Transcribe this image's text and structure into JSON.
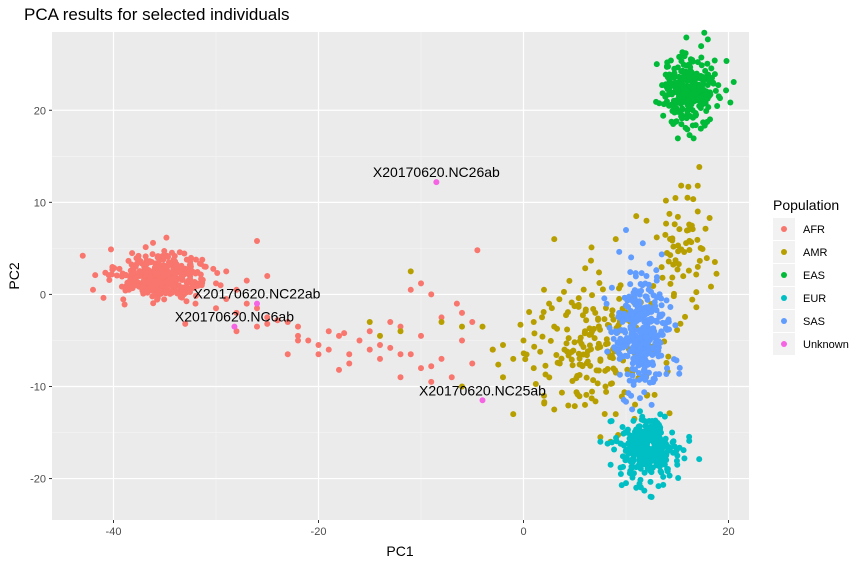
{
  "chart_data": {
    "type": "scatter",
    "title": "PCA results for selected individuals",
    "xlabel": "PC1",
    "ylabel": "PC2",
    "xlim": [
      -46,
      22
    ],
    "ylim": [
      -24.5,
      28.5
    ],
    "xticks": [
      -40,
      -20,
      0,
      20
    ],
    "yticks": [
      -20,
      -10,
      0,
      10,
      20
    ],
    "xtick_labels": [
      "-40",
      "-20",
      "0",
      "20"
    ],
    "ytick_labels": [
      "-20",
      "-10",
      "0",
      "10",
      "20"
    ],
    "grid": true,
    "legend": {
      "title": "Population",
      "position": "right",
      "entries": [
        {
          "label": "AFR",
          "color": "#F8766D"
        },
        {
          "label": "AMR",
          "color": "#B79F00"
        },
        {
          "label": "EAS",
          "color": "#00BA38"
        },
        {
          "label": "EUR",
          "color": "#00BFC4"
        },
        {
          "label": "SAS",
          "color": "#619CFF"
        },
        {
          "label": "Unknown",
          "color": "#F564E3"
        }
      ]
    },
    "series": [
      {
        "name": "AFR",
        "color": "#F8766D",
        "clusters": [
          {
            "center": [
              -35.5,
              2.0
            ],
            "sd": [
              2.0,
              1.1
            ],
            "n": 420
          }
        ],
        "points": [
          [
            -43,
            4.2
          ],
          [
            -42,
            0.5
          ],
          [
            -26,
            5.8
          ],
          [
            -29,
            2.5
          ],
          [
            -30,
            1.2
          ],
          [
            -31,
            3.0
          ],
          [
            -28,
            0.5
          ],
          [
            -27,
            1.5
          ],
          [
            -29,
            -0.5
          ],
          [
            -30,
            -1.5
          ],
          [
            -28,
            -2.0
          ],
          [
            -27,
            -1.0
          ],
          [
            -26,
            -1.5
          ],
          [
            -25,
            -2.5
          ],
          [
            -26,
            -3.5
          ],
          [
            -25,
            -3.2
          ],
          [
            -24,
            -2.8
          ],
          [
            -23,
            -3.0
          ],
          [
            -22,
            -3.5
          ],
          [
            -25,
            2.0
          ],
          [
            -32,
            -1.0
          ],
          [
            -33,
            -3.2
          ],
          [
            -28,
            -4.0
          ],
          [
            -22,
            -4.5
          ],
          [
            -21,
            -5.0
          ],
          [
            -20,
            -5.5
          ],
          [
            -19,
            -6.0
          ],
          [
            -18,
            -4.5
          ],
          [
            -17,
            -6.5
          ],
          [
            -16,
            -5.0
          ],
          [
            -14,
            -5.5
          ],
          [
            -12,
            -6.5
          ],
          [
            -13,
            -3.0
          ],
          [
            -10,
            -8.0
          ],
          [
            -9,
            -7.8
          ],
          [
            -8,
            -7.0
          ],
          [
            -6,
            -5.0
          ],
          [
            -5,
            -7.5
          ],
          [
            -7,
            -9.0
          ],
          [
            -9,
            -9.5
          ],
          [
            -12,
            -9.0
          ],
          [
            -14,
            -7.0
          ],
          [
            -18,
            -8.2
          ],
          [
            -17,
            -7.5
          ],
          [
            -15,
            -6.0
          ],
          [
            -11,
            -6.5
          ],
          [
            -10,
            -4.5
          ],
          [
            -8,
            -2.5
          ],
          [
            -10,
            1.2
          ],
          [
            -11,
            0.5
          ],
          [
            -9,
            0.0
          ],
          [
            -6,
            -2.0
          ],
          [
            -5,
            -3.0
          ],
          [
            -6.5,
            -1.0
          ],
          [
            -4.5,
            4.8
          ],
          [
            -3,
            -6.0
          ],
          [
            -12,
            -3.5
          ],
          [
            -15,
            -4.0
          ],
          [
            -13,
            -5.8
          ],
          [
            -20,
            -6.5
          ],
          [
            -22,
            -5.0
          ],
          [
            -23,
            -6.5
          ],
          [
            -19,
            -4.0
          ],
          [
            -17.5,
            -4.2
          ]
        ]
      },
      {
        "name": "AMR",
        "color": "#B79F00",
        "clusters": [
          {
            "center": [
              7.5,
              -6.0
            ],
            "sd": [
              3.5,
              4.0
            ],
            "n": 200
          },
          {
            "center": [
              15.5,
              5.0
            ],
            "sd": [
              1.6,
              3.5
            ],
            "n": 60
          }
        ],
        "points": [
          [
            3,
            6.0
          ],
          [
            9,
            6.0
          ],
          [
            17,
            11.8
          ],
          [
            16,
            10.5
          ],
          [
            12,
            8.0
          ],
          [
            11,
            8.5
          ],
          [
            14,
            4.5
          ],
          [
            13,
            6.2
          ],
          [
            -11,
            2.5
          ],
          [
            -8,
            -3.0
          ],
          [
            -6,
            -3.5
          ],
          [
            -4,
            -3.5
          ],
          [
            -3,
            -6.0
          ],
          [
            -2,
            -5.5
          ],
          [
            -1,
            -7.0
          ],
          [
            0,
            -5.0
          ],
          [
            1,
            -3.0
          ],
          [
            2,
            0.5
          ],
          [
            2.5,
            -1.0
          ],
          [
            3,
            -3.5
          ],
          [
            1,
            -8.0
          ],
          [
            2,
            -11.0
          ],
          [
            3,
            -12.5
          ],
          [
            -1,
            -13.0
          ],
          [
            -14,
            -4.5
          ],
          [
            -12,
            -4.0
          ],
          [
            -15,
            -3.0
          ],
          [
            -6,
            -10.0
          ],
          [
            4,
            -6.0
          ],
          [
            6,
            -4.0
          ],
          [
            7,
            -2.0
          ],
          [
            8,
            -10.0
          ],
          [
            9,
            -13.0
          ],
          [
            7.5,
            -15.5
          ],
          [
            10,
            -17.0
          ],
          [
            8.5,
            -16.0
          ],
          [
            6,
            -12.0
          ],
          [
            -2,
            -9.0
          ]
        ]
      },
      {
        "name": "EAS",
        "color": "#00BA38",
        "clusters": [
          {
            "center": [
              16.2,
              22.0
            ],
            "sd": [
              1.4,
              2.0
            ],
            "n": 280
          }
        ],
        "points": [
          [
            15.5,
            26.3
          ],
          [
            16.2,
            17.3
          ],
          [
            14,
            24.8
          ],
          [
            17.3,
            18.0
          ],
          [
            18.5,
            23.0
          ]
        ]
      },
      {
        "name": "EUR",
        "color": "#00BFC4",
        "clusters": [
          {
            "center": [
              12.0,
              -16.8
            ],
            "sd": [
              1.4,
              1.6
            ],
            "n": 320
          }
        ],
        "points": [
          [
            12.5,
            -22.0
          ],
          [
            11,
            -21.0
          ],
          [
            9.5,
            -19.5
          ],
          [
            7.5,
            -16.0
          ],
          [
            8.5,
            -18.5
          ],
          [
            14.5,
            -15.0
          ],
          [
            15,
            -18.5
          ],
          [
            10,
            -20.5
          ]
        ]
      },
      {
        "name": "SAS",
        "color": "#619CFF",
        "clusters": [
          {
            "center": [
              11.5,
              -4.0
            ],
            "sd": [
              1.4,
              3.0
            ],
            "n": 340
          }
        ],
        "points": [
          [
            10,
            7.0
          ],
          [
            12,
            2.0
          ],
          [
            13,
            1.5
          ],
          [
            9,
            -4.0
          ],
          [
            14,
            -8.0
          ],
          [
            10.5,
            -11.0
          ],
          [
            12.5,
            -12.0
          ],
          [
            14,
            -3.0
          ]
        ]
      },
      {
        "name": "Unknown",
        "color": "#F564E3",
        "clusters": [],
        "points": [
          [
            -8.5,
            12.2
          ],
          [
            -26,
            -1.0
          ],
          [
            -28.2,
            -3.5
          ],
          [
            -4,
            -11.5
          ]
        ]
      }
    ],
    "annotations": [
      {
        "text": "X20170620.NC26ab",
        "x": -8.5,
        "y": 12.2
      },
      {
        "text": "X20170620.NC22ab",
        "x": -26,
        "y": -1.0
      },
      {
        "text": "X20170620.NC6ab",
        "x": -28.2,
        "y": -3.5
      },
      {
        "text": "X20170620.NC25ab",
        "x": -4,
        "y": -11.5
      }
    ]
  }
}
